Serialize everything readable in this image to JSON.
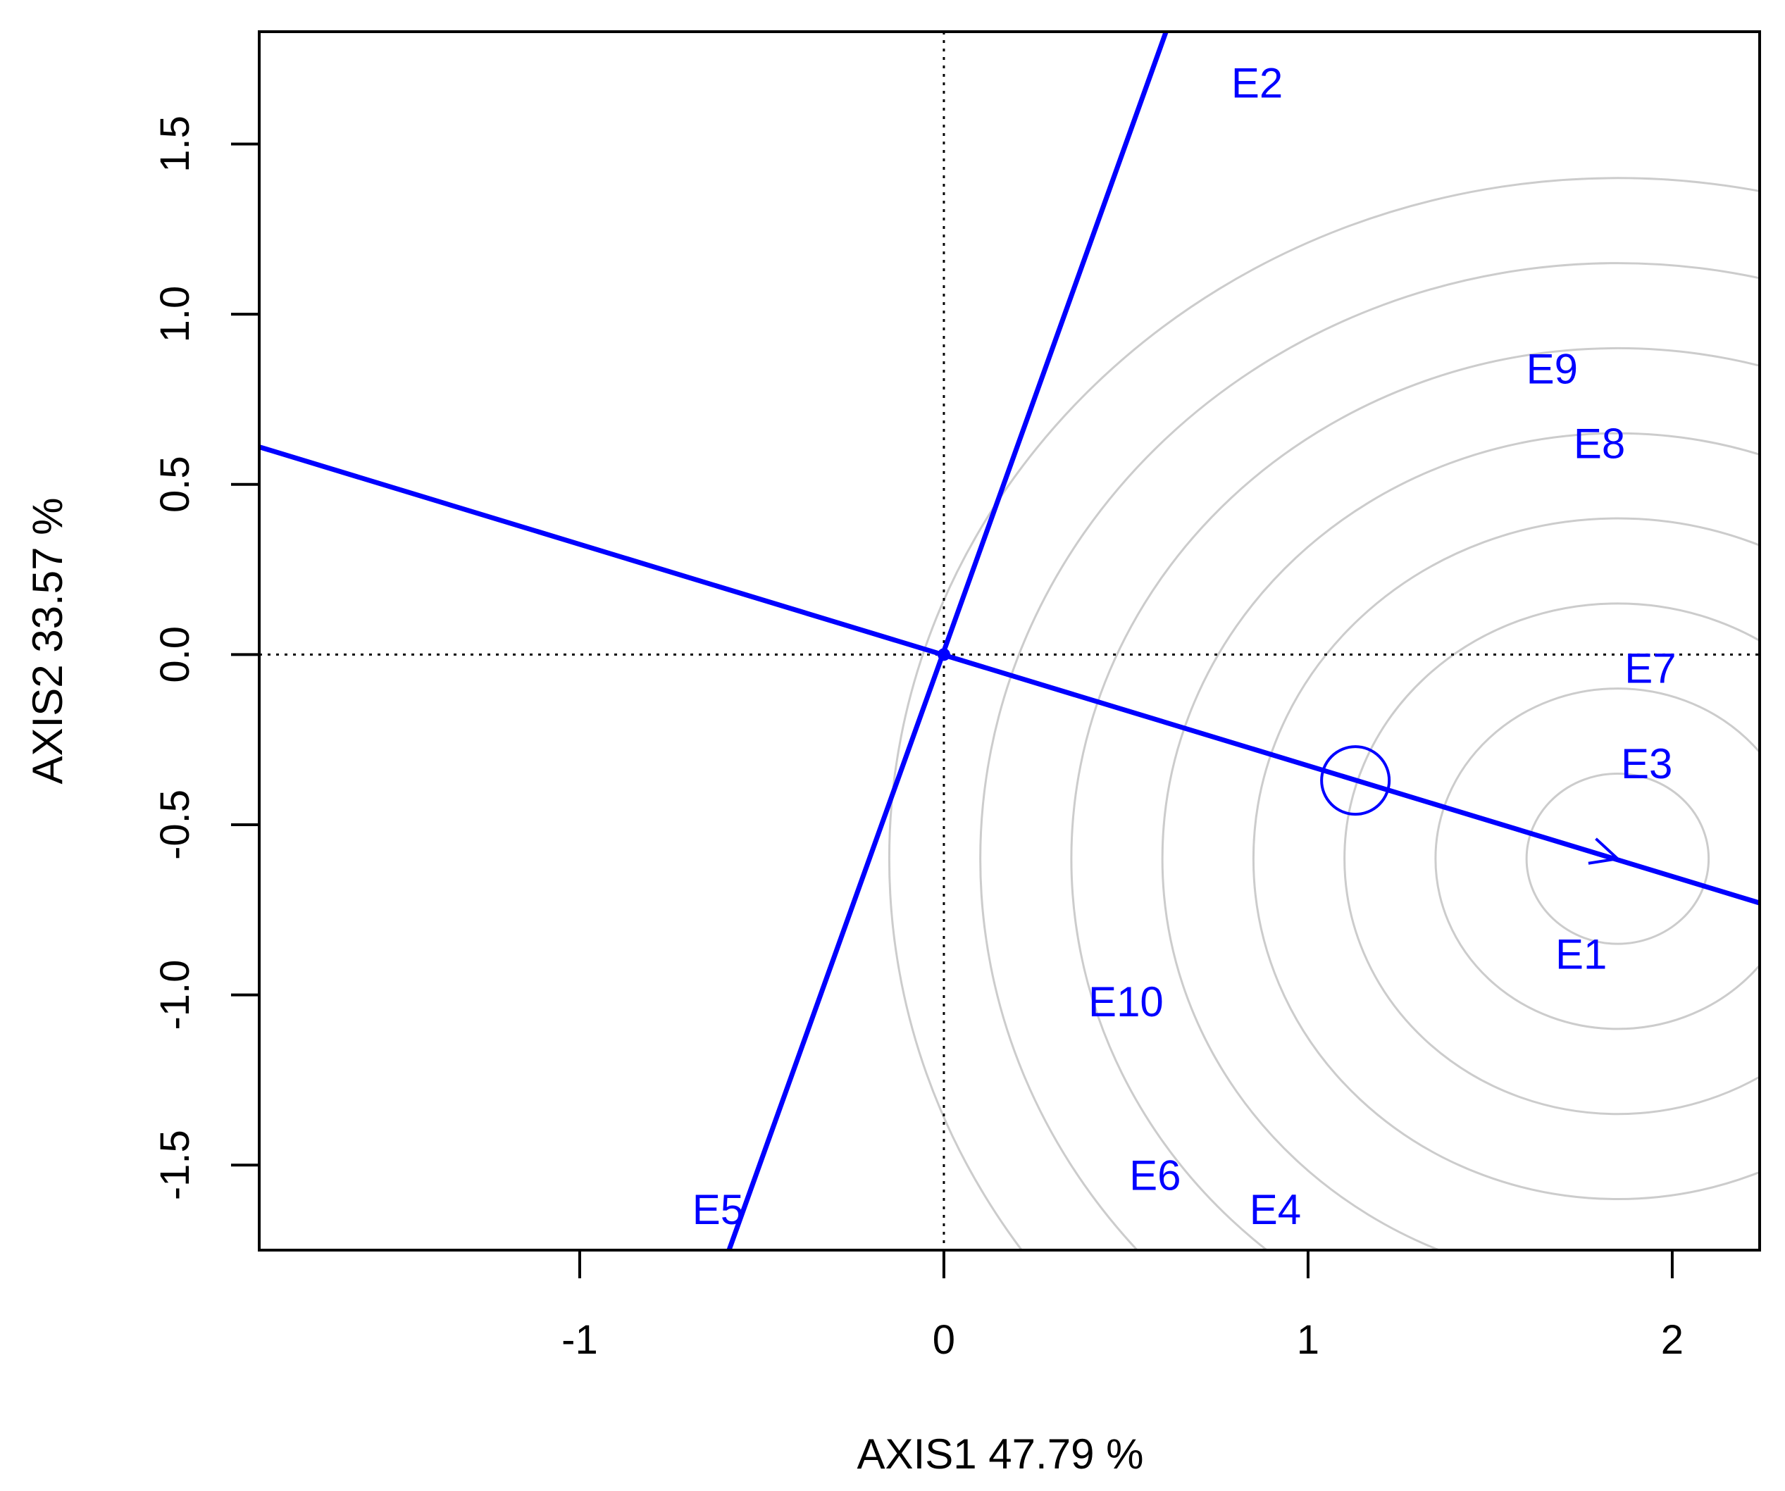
{
  "chart_data": {
    "type": "scatter",
    "subtype": "GGE biplot (ideal environment view)",
    "title": "",
    "xlabel": "AXIS1 47.79 %",
    "ylabel": "AXIS2 33.57 %",
    "xlim": [
      -1.88,
      2.24
    ],
    "ylim": [
      -1.75,
      1.83
    ],
    "x_ticks": [
      -1,
      0,
      1,
      2
    ],
    "x_tick_labels": [
      "-1",
      "0",
      "1",
      "2"
    ],
    "y_ticks": [
      -1.5,
      -1.0,
      -0.5,
      0.0,
      0.5,
      1.0,
      1.5
    ],
    "y_tick_labels": [
      "-1.5",
      "-1.0",
      "-0.5",
      "0.0",
      "0.5",
      "1.0",
      "1.5"
    ],
    "grid": false,
    "reference_lines": [
      {
        "axis": "x",
        "value": 0,
        "style": "dotted"
      },
      {
        "axis": "y",
        "value": 0,
        "style": "dotted"
      }
    ],
    "colors": {
      "series": "#0000ff",
      "circles": "#cccccc",
      "axes": "#000000"
    },
    "points": [
      {
        "label": "E1",
        "x": 1.75,
        "y": -0.88
      },
      {
        "label": "E2",
        "x": 0.86,
        "y": 1.68
      },
      {
        "label": "E3",
        "x": 1.93,
        "y": -0.32
      },
      {
        "label": "E4",
        "x": 0.91,
        "y": -1.63
      },
      {
        "label": "E5",
        "x": -0.62,
        "y": -1.63
      },
      {
        "label": "E6",
        "x": 0.58,
        "y": -1.53
      },
      {
        "label": "E7",
        "x": 1.94,
        "y": -0.04
      },
      {
        "label": "E8",
        "x": 1.8,
        "y": 0.62
      },
      {
        "label": "E9",
        "x": 1.67,
        "y": 0.84
      },
      {
        "label": "E10",
        "x": 0.5,
        "y": -1.02
      }
    ],
    "average_axis": {
      "from": [
        -1.88,
        0.61
      ],
      "to": [
        2.24,
        -0.73
      ]
    },
    "perpendicular_axis": {
      "from": [
        -0.59,
        -1.75
      ],
      "to": [
        0.61,
        1.83
      ]
    },
    "ideal_point": [
      1.85,
      -0.6
    ],
    "average_marker": [
      1.13,
      -0.37
    ],
    "concentric_radii": [
      0.25,
      0.5,
      0.75,
      1.0,
      1.25,
      1.5,
      1.75,
      2.0
    ]
  }
}
